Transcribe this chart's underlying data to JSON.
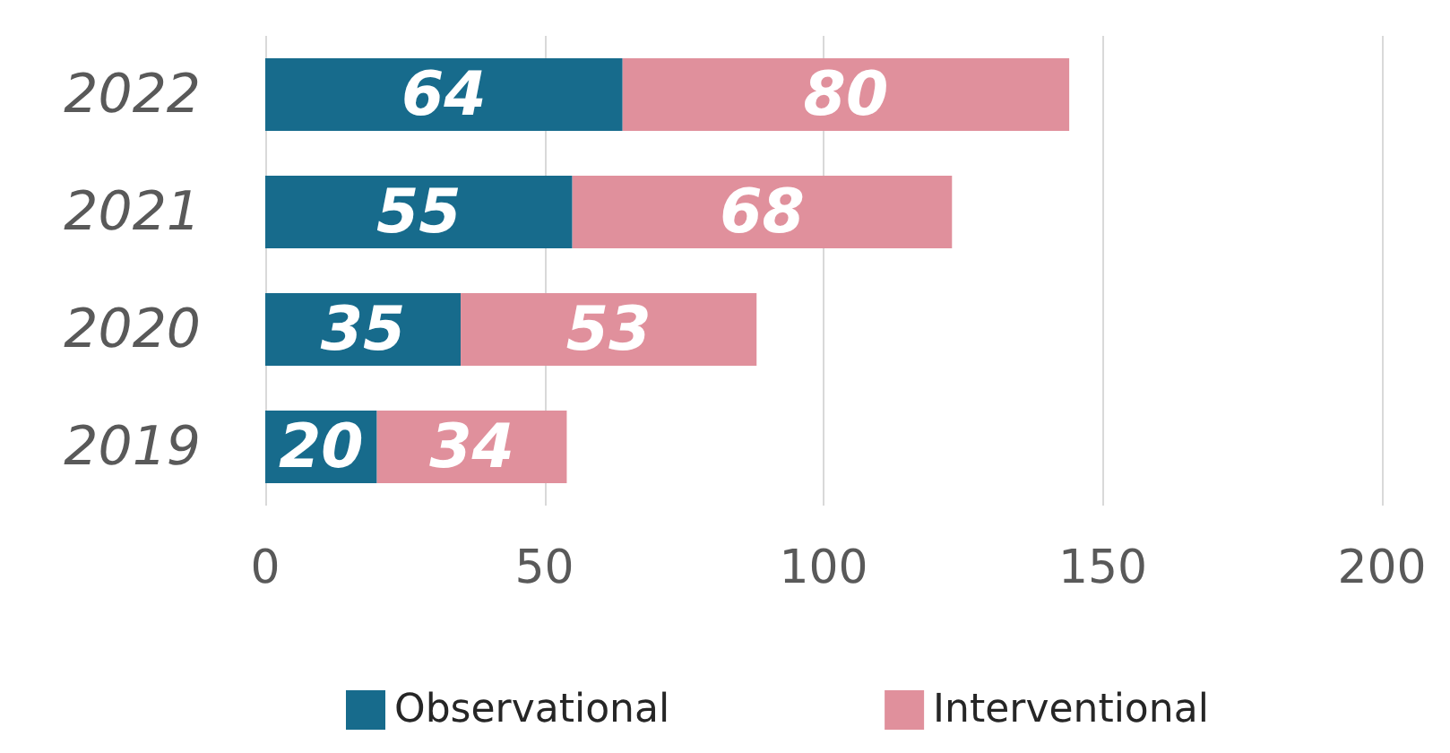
{
  "chart_data": {
    "type": "bar",
    "orientation": "horizontal",
    "stacked": true,
    "categories": [
      "2022",
      "2021",
      "2020",
      "2019"
    ],
    "series": [
      {
        "name": "Observational",
        "color": "#176b8c",
        "values": [
          64,
          55,
          35,
          20
        ]
      },
      {
        "name": "Interventional",
        "color": "#e0909c",
        "values": [
          80,
          68,
          53,
          34
        ]
      }
    ],
    "xlim": [
      0,
      200
    ],
    "xticks": [
      0,
      50,
      100,
      150,
      200
    ],
    "grid": "x",
    "legend": "bottom",
    "data_labels": true
  }
}
